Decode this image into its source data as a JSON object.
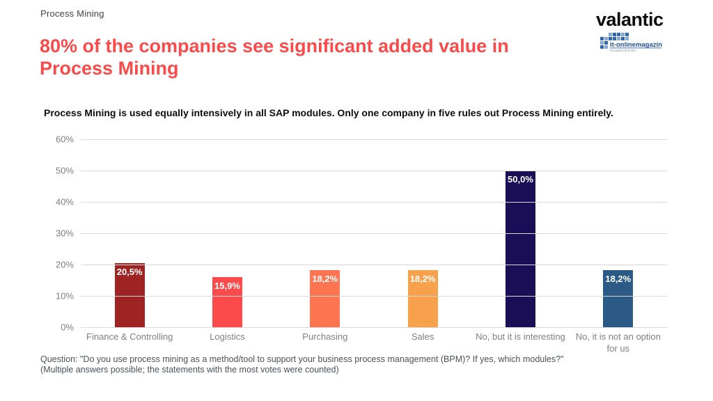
{
  "header": {
    "eyebrow": "Process Mining",
    "title": "80% of the companies see significant added value in Process Mining",
    "title_color": "#fb4a4a"
  },
  "logos": {
    "valantic": "valantic",
    "magazin_name": "it-onlinemagazin",
    "magazin_tagline": "kompakt informiert."
  },
  "subtitle": "Process Mining is used equally intensively in all SAP modules. Only one company in five rules out Process Mining entirely.",
  "chart_data": {
    "type": "bar",
    "title": "",
    "xlabel": "",
    "ylabel": "",
    "categories": [
      "Finance & Controlling",
      "Logistics",
      "Purchasing",
      "Sales",
      "No, but it is interesting",
      "No, it is not an option for us"
    ],
    "values": [
      20.5,
      15.9,
      18.2,
      18.2,
      50.0,
      18.2
    ],
    "value_labels": [
      "20,5%",
      "15,9%",
      "18,2%",
      "18,2%",
      "50,0%",
      "18,2%"
    ],
    "bar_colors": [
      "#9e2423",
      "#fd4b4b",
      "#fd7450",
      "#f8a14c",
      "#1a0e57",
      "#2a5a85"
    ],
    "ylim": [
      0,
      60
    ],
    "yticks": [
      "60%",
      "50%",
      "40%",
      "30%",
      "20%",
      "10%",
      "0%"
    ],
    "grid": true,
    "legend": false
  },
  "footnote": {
    "line1": "Question: \"Do you use process mining as a method/tool to support your business process management (BPM)? If yes, which modules?\"",
    "line2": "(Multiple answers possible; the statements with the most votes were counted)"
  }
}
